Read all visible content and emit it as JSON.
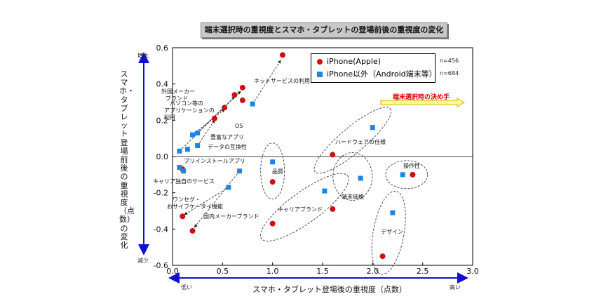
{
  "chart_data": {
    "type": "scatter",
    "title": "端末選択時の重視度とスマホ・タブレットの登場前後の重視度の変化",
    "xlabel": "スマホ・タブレット登場後の重視度（点数）",
    "ylabel": "スマホ・タブレット登場前後の重視度（点数）の変化",
    "xlim": [
      0.0,
      3.0
    ],
    "ylim": [
      -0.6,
      0.6
    ],
    "x_ticks": [
      "0.0",
      "0.5",
      "1.0",
      "1.5",
      "2.0",
      "2.5",
      "3.0"
    ],
    "y_ticks": [
      "0.6",
      "0.4",
      "0.2",
      "0.0",
      "-0.2",
      "-0.4",
      "-0.6"
    ],
    "y_axis_top_label": "増大",
    "y_axis_bottom_label": "減少",
    "x_axis_left_label": "低い",
    "x_axis_right_label": "高い",
    "key_arrow_label": "端末選択時の決め手",
    "series": [
      {
        "name": "iPhone(Apple)",
        "n": "n=456",
        "marker": "circle",
        "color": "#cc1111",
        "points": [
          {
            "x": 1.1,
            "y": 0.56
          },
          {
            "x": 0.7,
            "y": 0.38
          },
          {
            "x": 0.62,
            "y": 0.34
          },
          {
            "x": 0.7,
            "y": 0.31
          },
          {
            "x": 0.52,
            "y": 0.27
          },
          {
            "x": 0.42,
            "y": 0.21
          },
          {
            "x": 0.1,
            "y": -0.07
          },
          {
            "x": 0.1,
            "y": -0.33
          },
          {
            "x": 0.2,
            "y": -0.41
          },
          {
            "x": 1.0,
            "y": -0.14
          },
          {
            "x": 1.0,
            "y": -0.37
          },
          {
            "x": 1.6,
            "y": 0.01
          },
          {
            "x": 1.6,
            "y": -0.29
          },
          {
            "x": 2.4,
            "y": -0.1
          },
          {
            "x": 2.1,
            "y": -0.55
          }
        ]
      },
      {
        "name": "iPhone以外（Android端末等）",
        "n": "n=684",
        "marker": "square",
        "color": "#1a86e8",
        "points": [
          {
            "x": 0.8,
            "y": 0.29
          },
          {
            "x": 0.2,
            "y": 0.12
          },
          {
            "x": 0.25,
            "y": 0.13
          },
          {
            "x": 0.25,
            "y": 0.06
          },
          {
            "x": 0.15,
            "y": 0.04
          },
          {
            "x": 0.07,
            "y": 0.03
          },
          {
            "x": 0.07,
            "y": -0.06
          },
          {
            "x": 0.11,
            "y": -0.08
          },
          {
            "x": 0.67,
            "y": -0.08
          },
          {
            "x": 0.56,
            "y": -0.17
          },
          {
            "x": 1.0,
            "y": -0.03
          },
          {
            "x": 1.52,
            "y": -0.19
          },
          {
            "x": 1.88,
            "y": -0.12
          },
          {
            "x": 2.0,
            "y": 0.16
          },
          {
            "x": 2.3,
            "y": -0.1
          },
          {
            "x": 2.2,
            "y": -0.31
          }
        ]
      }
    ],
    "annotations": [
      "ネットサービスの利用",
      "外国メーカーブランド",
      "パソコン等のアプリケーションの利用",
      "OS",
      "豊富なアプリ",
      "データの互換性",
      "プリインストールアプリ",
      "キャリア独自のサービス",
      "ワンセグ・おサイフケータイ機能",
      "国内メーカーブランド",
      "品質",
      "キャリアブランド",
      "端末価格",
      "ハードウェアの仕様",
      "操作性",
      "デザイン"
    ]
  }
}
